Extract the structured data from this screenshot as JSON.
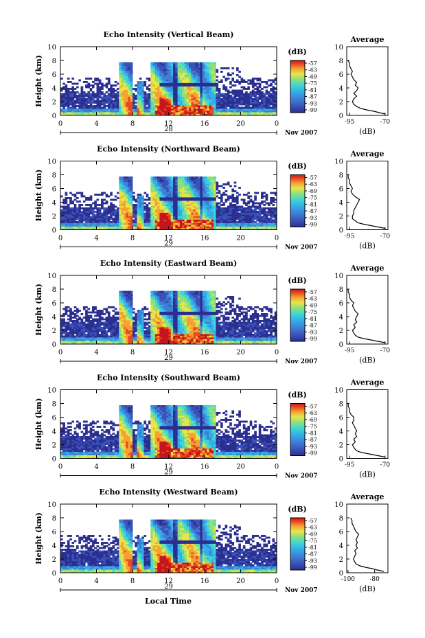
{
  "figure": {
    "xlabel": "Local Time",
    "date_label": "Nov 2007",
    "colorbar_unit": "(dB)",
    "colorbar_ticks": [
      "-57",
      "-63",
      "-69",
      "-75",
      "-81",
      "-87",
      "-93",
      "-99"
    ],
    "avg_title": "Average",
    "avg_xlabel": "(dB)"
  },
  "colors": {
    "colormap": [
      "#2b2f8f",
      "#3a52b8",
      "#3f7fd6",
      "#33aee8",
      "#3fd6d6",
      "#8fe07a",
      "#e6e64a",
      "#f5a233",
      "#e84a1f",
      "#c4161c"
    ]
  },
  "chart_data": [
    {
      "type": "heatmap",
      "title": "Echo Intensity (Vertical Beam)",
      "ylabel": "Height (km)",
      "xlim": [
        0,
        24
      ],
      "ylim": [
        0,
        10
      ],
      "xticks": [
        "0",
        "4",
        "8",
        "12",
        "16",
        "20",
        "0"
      ],
      "yticks": [
        "0",
        "2",
        "4",
        "6",
        "8",
        "10"
      ],
      "day_label": "28",
      "colorbar": {
        "min": -99,
        "max": -57
      },
      "average": {
        "type": "line",
        "xticks": [
          "-95",
          "-70"
        ],
        "xlim": [
          -97,
          -68
        ],
        "ylim": [
          0,
          10
        ],
        "yticks": [
          "0",
          "2",
          "4",
          "6",
          "8",
          "10"
        ],
        "profile": [
          [
            -70,
            0.2
          ],
          [
            -74,
            0.4
          ],
          [
            -78,
            0.6
          ],
          [
            -83,
            0.8
          ],
          [
            -87,
            1.0
          ],
          [
            -90,
            1.3
          ],
          [
            -92,
            1.6
          ],
          [
            -93,
            2.0
          ],
          [
            -92,
            2.4
          ],
          [
            -90,
            2.8
          ],
          [
            -92,
            3.2
          ],
          [
            -90,
            3.6
          ],
          [
            -89,
            4.0
          ],
          [
            -91,
            4.4
          ],
          [
            -90,
            4.8
          ],
          [
            -92,
            5.2
          ],
          [
            -93,
            5.6
          ],
          [
            -94,
            6.0
          ],
          [
            -93,
            6.4
          ],
          [
            -94,
            6.8
          ],
          [
            -95,
            7.2
          ],
          [
            -95,
            7.6
          ],
          [
            -96,
            8.0
          ]
        ]
      }
    },
    {
      "type": "heatmap",
      "title": "Echo Intensity (Northward Beam)",
      "ylabel": "Height (km)",
      "xlim": [
        0,
        24
      ],
      "ylim": [
        0,
        10
      ],
      "xticks": [
        "0",
        "4",
        "8",
        "12",
        "16",
        "20",
        "0"
      ],
      "yticks": [
        "0",
        "2",
        "4",
        "6",
        "8",
        "10"
      ],
      "day_label": "29",
      "colorbar": {
        "min": -99,
        "max": -57
      },
      "average": {
        "type": "line",
        "xticks": [
          "-95",
          "-70"
        ],
        "xlim": [
          -97,
          -68
        ],
        "ylim": [
          0,
          10
        ],
        "yticks": [
          "0",
          "2",
          "4",
          "6",
          "8",
          "10"
        ],
        "profile": [
          [
            -70,
            0.2
          ],
          [
            -75,
            0.4
          ],
          [
            -80,
            0.6
          ],
          [
            -85,
            0.8
          ],
          [
            -89,
            1.0
          ],
          [
            -91,
            1.3
          ],
          [
            -93,
            1.6
          ],
          [
            -93,
            2.0
          ],
          [
            -92,
            2.4
          ],
          [
            -92,
            2.8
          ],
          [
            -91,
            3.2
          ],
          [
            -90,
            3.6
          ],
          [
            -89,
            4.0
          ],
          [
            -88,
            4.4
          ],
          [
            -91,
            4.8
          ],
          [
            -93,
            5.2
          ],
          [
            -94,
            5.6
          ],
          [
            -93,
            6.0
          ],
          [
            -94,
            6.4
          ],
          [
            -95,
            6.8
          ],
          [
            -95,
            7.2
          ],
          [
            -96,
            7.6
          ],
          [
            -96,
            8.0
          ]
        ]
      }
    },
    {
      "type": "heatmap",
      "title": "Echo Intensity (Eastward Beam)",
      "ylabel": "Height (km)",
      "xlim": [
        0,
        24
      ],
      "ylim": [
        0,
        10
      ],
      "xticks": [
        "0",
        "4",
        "8",
        "12",
        "16",
        "20",
        "0"
      ],
      "yticks": [
        "0",
        "2",
        "4",
        "6",
        "8",
        "10"
      ],
      "day_label": "29",
      "colorbar": {
        "min": -99,
        "max": -57
      },
      "average": {
        "type": "line",
        "xticks": [
          "-95",
          "-70"
        ],
        "xlim": [
          -97,
          -68
        ],
        "ylim": [
          0,
          10
        ],
        "yticks": [
          "0",
          "2",
          "4",
          "6",
          "8",
          "10"
        ],
        "profile": [
          [
            -70,
            0.2
          ],
          [
            -75,
            0.4
          ],
          [
            -80,
            0.6
          ],
          [
            -85,
            0.8
          ],
          [
            -89,
            1.0
          ],
          [
            -91,
            1.3
          ],
          [
            -92,
            1.6
          ],
          [
            -93,
            2.0
          ],
          [
            -91,
            2.4
          ],
          [
            -92,
            2.8
          ],
          [
            -90,
            3.2
          ],
          [
            -91,
            3.6
          ],
          [
            -90,
            4.0
          ],
          [
            -89,
            4.4
          ],
          [
            -91,
            4.8
          ],
          [
            -92,
            5.2
          ],
          [
            -93,
            5.6
          ],
          [
            -92,
            6.0
          ],
          [
            -94,
            6.4
          ],
          [
            -95,
            6.8
          ],
          [
            -95,
            7.2
          ],
          [
            -96,
            7.6
          ],
          [
            -96,
            8.0
          ]
        ]
      }
    },
    {
      "type": "heatmap",
      "title": "Echo Intensity (Southward Beam)",
      "ylabel": "Height (km)",
      "xlim": [
        0,
        24
      ],
      "ylim": [
        0,
        10
      ],
      "xticks": [
        "0",
        "4",
        "8",
        "12",
        "16",
        "20",
        "0"
      ],
      "yticks": [
        "0",
        "2",
        "4",
        "6",
        "8",
        "10"
      ],
      "day_label": "29",
      "colorbar": {
        "min": -99,
        "max": -57
      },
      "average": {
        "type": "line",
        "xticks": [
          "-95",
          "-70"
        ],
        "xlim": [
          -97,
          -68
        ],
        "ylim": [
          0,
          10
        ],
        "yticks": [
          "0",
          "2",
          "4",
          "6",
          "8",
          "10"
        ],
        "profile": [
          [
            -70,
            0.2
          ],
          [
            -75,
            0.4
          ],
          [
            -80,
            0.6
          ],
          [
            -85,
            0.8
          ],
          [
            -89,
            1.0
          ],
          [
            -91,
            1.3
          ],
          [
            -92,
            1.6
          ],
          [
            -93,
            2.0
          ],
          [
            -91,
            2.4
          ],
          [
            -92,
            2.8
          ],
          [
            -90,
            3.2
          ],
          [
            -91,
            3.6
          ],
          [
            -90,
            4.0
          ],
          [
            -91,
            4.4
          ],
          [
            -92,
            4.8
          ],
          [
            -93,
            5.2
          ],
          [
            -92,
            5.6
          ],
          [
            -92,
            6.0
          ],
          [
            -94,
            6.4
          ],
          [
            -95,
            6.8
          ],
          [
            -95,
            7.2
          ],
          [
            -96,
            7.6
          ],
          [
            -96,
            8.0
          ]
        ]
      }
    },
    {
      "type": "heatmap",
      "title": "Echo Intensity (Westward Beam)",
      "ylabel": "Height (km)",
      "xlim": [
        0,
        24
      ],
      "ylim": [
        0,
        10
      ],
      "xticks": [
        "0",
        "4",
        "8",
        "12",
        "16",
        "20",
        "0"
      ],
      "yticks": [
        "0",
        "2",
        "4",
        "6",
        "8",
        "10"
      ],
      "day_label": "29",
      "colorbar": {
        "min": -99,
        "max": -57
      },
      "average": {
        "type": "line",
        "xticks": [
          "-100",
          "-80"
        ],
        "xlim": [
          -101,
          -70
        ],
        "ylim": [
          0,
          10
        ],
        "yticks": [
          "0",
          "2",
          "4",
          "6",
          "8",
          "10"
        ],
        "profile": [
          [
            -73,
            0.2
          ],
          [
            -78,
            0.4
          ],
          [
            -82,
            0.6
          ],
          [
            -87,
            0.8
          ],
          [
            -91,
            1.0
          ],
          [
            -94,
            1.3
          ],
          [
            -95,
            1.6
          ],
          [
            -96,
            2.0
          ],
          [
            -95,
            2.4
          ],
          [
            -94,
            2.8
          ],
          [
            -95,
            3.2
          ],
          [
            -93,
            3.6
          ],
          [
            -94,
            4.0
          ],
          [
            -93,
            4.4
          ],
          [
            -94,
            4.8
          ],
          [
            -93,
            5.2
          ],
          [
            -92,
            5.6
          ],
          [
            -94,
            6.0
          ],
          [
            -95,
            6.4
          ],
          [
            -96,
            6.8
          ],
          [
            -97,
            7.2
          ],
          [
            -97,
            7.6
          ],
          [
            -98,
            8.0
          ]
        ]
      }
    }
  ]
}
